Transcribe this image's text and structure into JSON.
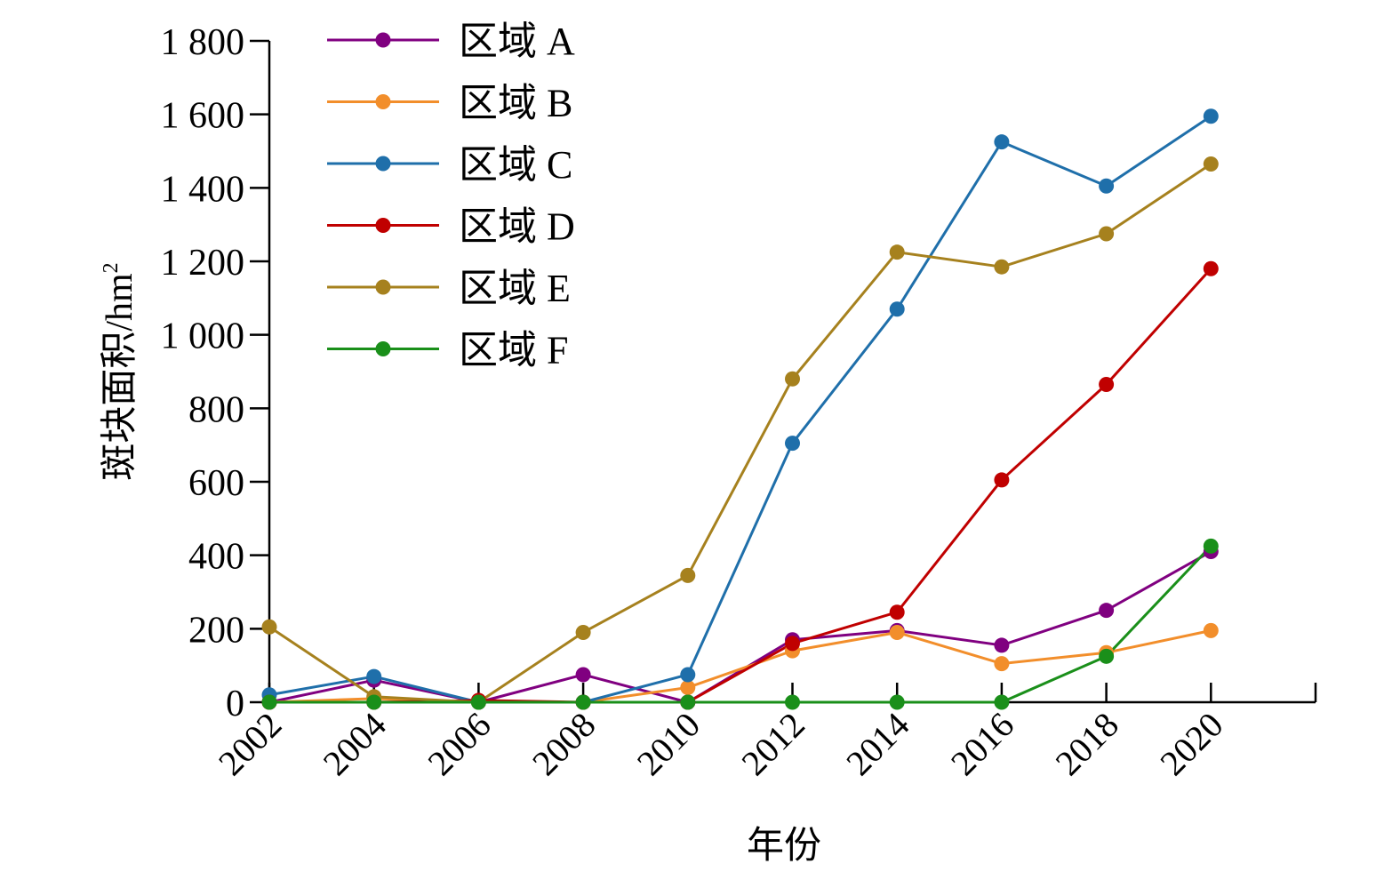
{
  "chart_data": {
    "type": "line",
    "xlabel": "年份",
    "ylabel": "斑块面积/hm",
    "ylabel_sup": "2",
    "x": [
      2002,
      2004,
      2006,
      2008,
      2010,
      2012,
      2014,
      2016,
      2018,
      2020
    ],
    "x_tick_labels": [
      "2002",
      "2004",
      "2006",
      "2008",
      "2010",
      "2012",
      "2014",
      "2016",
      "2018",
      "2020"
    ],
    "xlim": [
      2002,
      2022
    ],
    "ylim": [
      0,
      1800
    ],
    "y_ticks": [
      0,
      200,
      400,
      600,
      800,
      1000,
      1200,
      1400,
      1600,
      1800
    ],
    "y_tick_labels": [
      "0",
      "200",
      "400",
      "600",
      "800",
      "1 000",
      "1 200",
      "1 400",
      "1 600",
      "1 800"
    ],
    "grid": false,
    "legend_position": "top-left",
    "series": [
      {
        "name": "区域 A",
        "color": "#800080",
        "values": [
          0,
          60,
          0,
          75,
          0,
          170,
          195,
          155,
          250,
          410
        ]
      },
      {
        "name": "区域 B",
        "color": "#F28E2B",
        "values": [
          0,
          10,
          0,
          0,
          40,
          140,
          190,
          105,
          135,
          195
        ]
      },
      {
        "name": "区域 C",
        "color": "#1F6FAA",
        "values": [
          20,
          70,
          0,
          0,
          75,
          705,
          1070,
          1525,
          1405,
          1595
        ]
      },
      {
        "name": "区域 D",
        "color": "#C00000",
        "values": [
          0,
          0,
          5,
          0,
          0,
          160,
          245,
          605,
          865,
          1180
        ]
      },
      {
        "name": "区域 E",
        "color": "#A6811E",
        "values": [
          205,
          15,
          0,
          190,
          345,
          880,
          1225,
          1185,
          1275,
          1465
        ]
      },
      {
        "name": "区域 F",
        "color": "#1A8F1A",
        "values": [
          0,
          0,
          0,
          0,
          0,
          0,
          0,
          0,
          125,
          425
        ]
      }
    ]
  }
}
